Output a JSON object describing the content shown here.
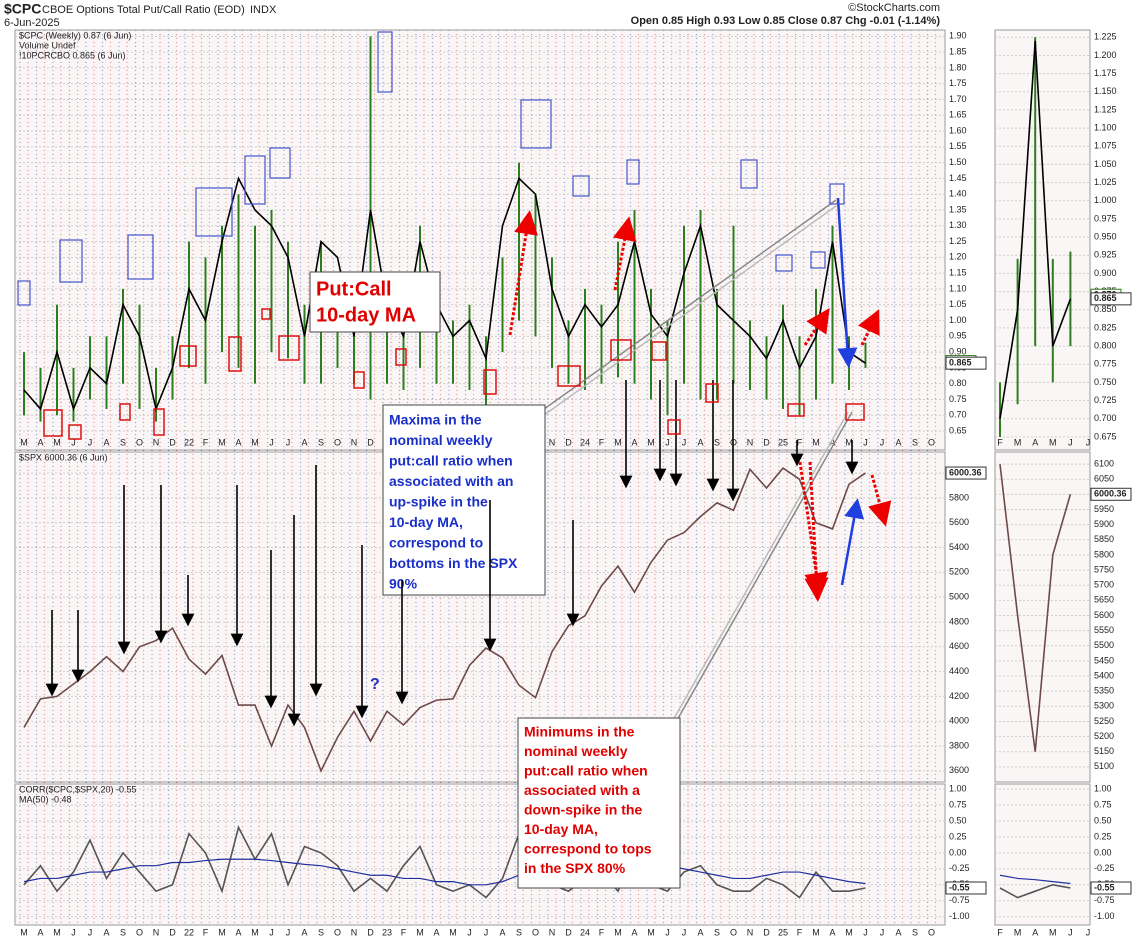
{
  "header": {
    "symbol": "$CPC",
    "name": "CBOE Options Total Put/Call Ratio (EOD)",
    "exchange": "INDX",
    "date": "6-Jun-2025",
    "ohlc": "Open 0.85 High 0.93 Low 0.85 Close 0.87 Chg -0.01 (-1.14%)",
    "credit": "©StockCharts.com"
  },
  "annotations": {
    "ma_box": [
      "Put:Call",
      "10-day MA"
    ],
    "blue": [
      "Maxima in the",
      "nominal weekly",
      "put:call ratio when",
      "associated with an",
      "up-spike in the",
      "10-day MA,",
      "correspond to",
      "bottoms in the SPX",
      "90%"
    ],
    "red": [
      "Minimums in the",
      "nominal weekly",
      "put:call ratio when",
      "associated with a",
      "down-spike in the",
      "10-day MA,",
      "correspond to tops",
      "in the SPX 80%"
    ],
    "question": "?"
  },
  "chart_data": [
    {
      "type": "line",
      "notes": [
        "Volume Undef"
      ],
      "categories": [
        "M",
        "A",
        "M",
        "J",
        "J",
        "A",
        "S",
        "O",
        "N",
        "D",
        "22",
        "F",
        "M",
        "A",
        "M",
        "J",
        "J",
        "A",
        "S",
        "O",
        "N",
        "D",
        "23",
        "F",
        "M",
        "A",
        "M",
        "J",
        "J",
        "A",
        "S",
        "O",
        "N",
        "D",
        "24",
        "F",
        "M",
        "A",
        "M",
        "J",
        "J",
        "A",
        "S",
        "O",
        "N",
        "D",
        "25",
        "F",
        "M",
        "A",
        "M",
        "J",
        "J",
        "A",
        "S",
        "O"
      ],
      "series": [
        {
          "name": "$CPC (Weekly) 0.87 (6 Jun)",
          "color": "#2e7d1e",
          "close": 0.87,
          "close_label": "0.870",
          "high": [
            0.9,
            0.85,
            1.05,
            0.85,
            0.95,
            0.95,
            1.1,
            1.05,
            0.85,
            0.95,
            1.25,
            1.2,
            1.3,
            1.4,
            1.3,
            1.35,
            1.25,
            1.05,
            1.25,
            1.15,
            1.05,
            1.9,
            1.15,
            1.05,
            1.3,
            1.1,
            1.0,
            1.05,
            0.95,
            1.2,
            1.5,
            1.4,
            1.2,
            1.0,
            1.1,
            1.05,
            1.25,
            1.35,
            1.1,
            1.0,
            1.3,
            1.35,
            1.1,
            1.3,
            1.0,
            0.95,
            1.05,
            0.95,
            1.1,
            1.3,
            0.95,
            0.93,
            null,
            null,
            null,
            null
          ],
          "low": [
            0.7,
            0.68,
            0.7,
            0.68,
            0.75,
            0.72,
            0.8,
            0.72,
            0.68,
            0.75,
            0.85,
            0.8,
            0.9,
            0.85,
            0.8,
            0.9,
            0.88,
            0.8,
            0.8,
            0.85,
            0.8,
            0.75,
            0.8,
            0.78,
            0.85,
            0.8,
            0.8,
            0.78,
            0.72,
            0.9,
            1.0,
            0.95,
            0.85,
            0.8,
            0.78,
            0.8,
            0.82,
            0.8,
            0.75,
            0.7,
            0.8,
            0.75,
            0.75,
            0.8,
            0.78,
            0.75,
            0.72,
            0.7,
            0.75,
            0.8,
            0.78,
            0.85,
            null,
            null,
            null,
            null
          ]
        },
        {
          "name": "!10PCRCBO 0.865 (6 Jun)",
          "color": "#000000",
          "axis_tag": true,
          "values": [
            0.78,
            0.72,
            0.9,
            0.72,
            0.85,
            0.8,
            1.05,
            0.95,
            0.72,
            0.85,
            1.1,
            1.0,
            1.25,
            1.45,
            1.35,
            1.3,
            1.2,
            0.95,
            1.25,
            1.2,
            0.95,
            1.35,
            1.05,
            0.95,
            1.25,
            1.05,
            0.95,
            1.0,
            0.88,
            1.3,
            1.45,
            1.4,
            1.1,
            0.95,
            1.05,
            0.98,
            1.05,
            1.25,
            1.02,
            0.95,
            1.15,
            1.3,
            1.05,
            1.0,
            0.95,
            0.88,
            1.0,
            0.85,
            0.95,
            1.25,
            0.9,
            0.865,
            null,
            null,
            null,
            null
          ]
        }
      ],
      "ylim": [
        0.59,
        1.92
      ],
      "yticks": [
        {
          "value": 0.65,
          "label": "0.65"
        },
        {
          "value": 0.7,
          "label": "0.70"
        },
        {
          "value": 0.75,
          "label": "0.75"
        },
        {
          "value": 0.8,
          "label": "0.80"
        },
        {
          "value": 0.85,
          "label": "0.85"
        },
        {
          "value": 0.9,
          "label": "0.90"
        },
        {
          "value": 0.95,
          "label": "0.95"
        },
        {
          "value": 1.0,
          "label": "1.00"
        },
        {
          "value": 1.05,
          "label": "1.05"
        },
        {
          "value": 1.1,
          "label": "1.10"
        },
        {
          "value": 1.15,
          "label": "1.15"
        },
        {
          "value": 1.2,
          "label": "1.20"
        },
        {
          "value": 1.25,
          "label": "1.25"
        },
        {
          "value": 1.3,
          "label": "1.30"
        },
        {
          "value": 1.35,
          "label": "1.35"
        },
        {
          "value": 1.4,
          "label": "1.40"
        },
        {
          "value": 1.45,
          "label": "1.45"
        },
        {
          "value": 1.5,
          "label": "1.50"
        },
        {
          "value": 1.55,
          "label": "1.55"
        },
        {
          "value": 1.6,
          "label": "1.60"
        },
        {
          "value": 1.65,
          "label": "1.65"
        },
        {
          "value": 1.7,
          "label": "1.70"
        },
        {
          "value": 1.75,
          "label": "1.75"
        },
        {
          "value": 1.8,
          "label": "1.80"
        },
        {
          "value": 1.85,
          "label": "1.85"
        },
        {
          "value": 1.9,
          "label": "1.90"
        }
      ],
      "grid": true
    },
    {
      "type": "line",
      "series": [
        {
          "name": "$SPX 6000.36 (6 Jun)",
          "color": "#6e4a4a",
          "axis_tag": true,
          "values": [
            3950,
            4180,
            4200,
            4300,
            4400,
            4520,
            4400,
            4600,
            4650,
            4750,
            4500,
            4380,
            4530,
            4130,
            4130,
            3800,
            4130,
            3950,
            3600,
            3870,
            4080,
            3840,
            4080,
            3970,
            4110,
            4170,
            4180,
            4450,
            4590,
            4510,
            4290,
            4190,
            4560,
            4770,
            4850,
            5090,
            5250,
            5040,
            5280,
            5460,
            5520,
            5650,
            5760,
            5700,
            6030,
            5880,
            6040,
            5950,
            5600,
            5550,
            5910,
            6000.36,
            null,
            null,
            null,
            null
          ]
        }
      ],
      "ylim": [
        3510,
        6170
      ],
      "yticks": [
        3600,
        3800,
        4000,
        4200,
        4400,
        4600,
        4800,
        5000,
        5200,
        5400,
        5600,
        5800,
        6000
      ],
      "grid": true
    },
    {
      "type": "line",
      "series": [
        {
          "name": "CORR($CPC,$SPX,20) -0.55",
          "color": "#555555",
          "axis_tag": true,
          "values": [
            -0.5,
            -0.2,
            -0.6,
            -0.3,
            0.2,
            -0.4,
            0.0,
            -0.3,
            -0.6,
            -0.5,
            0.3,
            0.0,
            -0.6,
            0.4,
            -0.1,
            0.3,
            -0.5,
            0.1,
            0.0,
            -0.2,
            -0.6,
            -0.4,
            -0.6,
            -0.2,
            0.1,
            -0.5,
            -0.6,
            -0.5,
            -0.7,
            -0.4,
            0.3,
            0.2,
            -0.5,
            -0.6,
            -0.4,
            -0.3,
            -0.6,
            0.0,
            -0.5,
            -0.6,
            -0.3,
            -0.2,
            -0.5,
            -0.6,
            -0.6,
            -0.4,
            -0.5,
            -0.7,
            -0.3,
            -0.6,
            -0.6,
            -0.55,
            null,
            null,
            null,
            null
          ]
        },
        {
          "name": "MA(50) -0.48",
          "color": "#1f2f9f",
          "values": [
            -0.45,
            -0.4,
            -0.4,
            -0.35,
            -0.3,
            -0.3,
            -0.25,
            -0.2,
            -0.2,
            -0.15,
            -0.15,
            -0.12,
            -0.1,
            -0.1,
            -0.1,
            -0.12,
            -0.15,
            -0.18,
            -0.2,
            -0.25,
            -0.3,
            -0.35,
            -0.35,
            -0.4,
            -0.4,
            -0.45,
            -0.45,
            -0.5,
            -0.5,
            -0.45,
            -0.35,
            -0.3,
            -0.3,
            -0.35,
            -0.35,
            -0.3,
            -0.25,
            -0.2,
            -0.2,
            -0.2,
            -0.25,
            -0.3,
            -0.35,
            -0.4,
            -0.4,
            -0.35,
            -0.3,
            -0.3,
            -0.35,
            -0.4,
            -0.45,
            -0.48,
            null,
            null,
            null,
            null
          ]
        }
      ],
      "ylim": [
        -1.13,
        1.08
      ],
      "yticks": [
        {
          "value": 1,
          "label": "1.00"
        },
        {
          "value": 0.75,
          "label": "0.75"
        },
        {
          "value": 0.5,
          "label": "0.50"
        },
        {
          "value": 0.25,
          "label": "0.25"
        },
        {
          "value": 0,
          "label": "0.00"
        },
        {
          "value": -0.25,
          "label": "-0.25"
        },
        {
          "value": -0.5,
          "label": "-0.50"
        },
        {
          "value": -0.75,
          "label": "-0.75"
        },
        {
          "value": -1,
          "label": "-1.00"
        }
      ],
      "grid": true
    },
    {
      "type": "line",
      "categories": [
        "F",
        "M",
        "A",
        "M",
        "J",
        "J"
      ],
      "series": [
        {
          "color": "#2e7d1e",
          "close": 0.87,
          "close_label": "0.870",
          "high": [
            0.75,
            0.92,
            1.225,
            0.92,
            0.93,
            null
          ],
          "low": [
            0.675,
            0.72,
            0.8,
            0.75,
            0.8,
            null
          ]
        },
        {
          "color": "#000000",
          "axis_tag": true,
          "values": [
            0.7,
            0.85,
            1.22,
            0.8,
            0.865,
            null
          ]
        }
      ],
      "ylim": [
        0.657,
        1.235
      ],
      "yticks": [
        {
          "value": 0.675,
          "label": "0.675"
        },
        {
          "value": 0.7,
          "label": "0.700"
        },
        {
          "value": 0.725,
          "label": "0.725"
        },
        {
          "value": 0.75,
          "label": "0.750"
        },
        {
          "value": 0.775,
          "label": "0.775"
        },
        {
          "value": 0.8,
          "label": "0.800"
        },
        {
          "value": 0.825,
          "label": "0.825"
        },
        {
          "value": 0.85,
          "label": "0.850"
        },
        {
          "value": 0.875,
          "label": "0.875"
        },
        {
          "value": 0.9,
          "label": "0.900"
        },
        {
          "value": 0.925,
          "label": "0.925"
        },
        {
          "value": 0.95,
          "label": "0.950"
        },
        {
          "value": 0.975,
          "label": "0.975"
        },
        {
          "value": 1.0,
          "label": "1.000"
        },
        {
          "value": 1.025,
          "label": "1.025"
        },
        {
          "value": 1.05,
          "label": "1.050"
        },
        {
          "value": 1.075,
          "label": "1.075"
        },
        {
          "value": 1.1,
          "label": "1.100"
        },
        {
          "value": 1.125,
          "label": "1.125"
        },
        {
          "value": 1.15,
          "label": "1.150"
        },
        {
          "value": 1.175,
          "label": "1.175"
        },
        {
          "value": 1.2,
          "label": "1.200"
        },
        {
          "value": 1.225,
          "label": "1.225"
        }
      ],
      "grid": true
    },
    {
      "type": "line",
      "series": [
        {
          "color": "#6e4a4a",
          "axis_tag": true,
          "values": [
            6100,
            5600,
            5150,
            5800,
            6000.36,
            null
          ]
        }
      ],
      "ylim": [
        5050,
        6140
      ],
      "yticks": [
        5100,
        5150,
        5200,
        5250,
        5300,
        5350,
        5400,
        5450,
        5500,
        5550,
        5600,
        5650,
        5700,
        5750,
        5800,
        5850,
        5900,
        5950,
        6000,
        6050,
        6100
      ],
      "grid": true
    },
    {
      "type": "line",
      "series": [
        {
          "color": "#555555",
          "axis_tag": true,
          "values": [
            -0.55,
            -0.7,
            -0.6,
            -0.5,
            -0.55,
            null
          ]
        },
        {
          "color": "#1f2f9f",
          "values": [
            -0.35,
            -0.4,
            -0.42,
            -0.45,
            -0.48,
            null
          ]
        }
      ],
      "ylim": [
        -1.13,
        1.08
      ],
      "yticks": [
        {
          "value": 1,
          "label": "1.00"
        },
        {
          "value": 0.75,
          "label": "0.75"
        },
        {
          "value": 0.5,
          "label": "0.50"
        },
        {
          "value": 0.25,
          "label": "0.25"
        },
        {
          "value": 0,
          "label": "0.00"
        },
        {
          "value": -0.25,
          "label": "-0.25"
        },
        {
          "value": -0.5,
          "label": "-0.50"
        },
        {
          "value": -0.75,
          "label": "-0.75"
        },
        {
          "value": -1,
          "label": "-1.00"
        }
      ],
      "grid": true
    }
  ]
}
